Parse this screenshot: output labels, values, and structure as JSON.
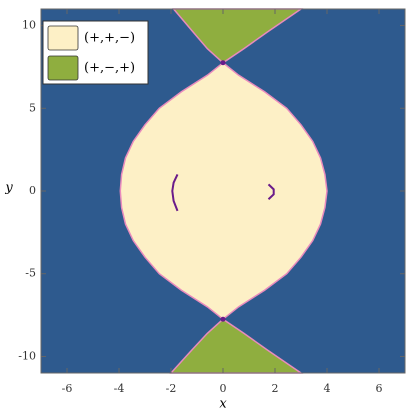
{
  "chart_data": {
    "type": "region",
    "x_label": "x",
    "y_label": "y",
    "xlim": [
      -7,
      7
    ],
    "ylim": [
      -11,
      11
    ],
    "xticks": [
      -6,
      -4,
      -2,
      0,
      2,
      4,
      6
    ],
    "yticks": [
      -10,
      -5,
      0,
      5,
      10
    ],
    "background": "#2e5a8e",
    "boundary_color": "#e98bbd",
    "regions": [
      {
        "name": "(+,+,−)",
        "color": "#fdf0c6",
        "pieces": [
          {
            "x": [
              0,
              0.6,
              1.6,
              2.45,
              3.0,
              3.45,
              3.75,
              3.92,
              4.0,
              3.92,
              3.75,
              3.45,
              3.0,
              2.45,
              1.6,
              0.6,
              0,
              -0.6,
              -1.6,
              -2.45,
              -3.0,
              -3.45,
              -3.75,
              -3.9,
              -3.95,
              -3.9,
              -3.75,
              -3.45,
              -3.0,
              -2.45,
              -1.6,
              -0.6
            ],
            "y": [
              7.75,
              7,
              6,
              5,
              4,
              3,
              2,
              1,
              0,
              -1,
              -2,
              -3,
              -4,
              -5,
              -6,
              -7,
              -7.75,
              -7,
              -6,
              -5,
              -4,
              -3,
              -2,
              -1,
              0,
              1,
              2,
              3,
              4,
              5,
              6,
              7
            ]
          }
        ]
      },
      {
        "name": "(+,−,+)",
        "color": "#8fae3f",
        "pieces": [
          {
            "x": [
              0,
              -0.6,
              -1.2,
              -1.9,
              3,
              1.7,
              0.8
            ],
            "y": [
              7.75,
              8.6,
              9.7,
              11,
              11,
              9.6,
              8.6
            ]
          },
          {
            "x": [
              0,
              -0.6,
              -1.25,
              -2,
              3,
              1.7,
              0.8
            ],
            "y": [
              -7.75,
              -8.6,
              -9.7,
              -11,
              -11,
              -9.6,
              -8.6
            ]
          }
        ]
      }
    ],
    "curves": [
      {
        "color": "#6a1b8a",
        "x": [
          -1.75,
          -1.9,
          -1.95,
          -1.9,
          -1.75
        ],
        "y": [
          1.0,
          0.5,
          0,
          -0.6,
          -1.2
        ]
      },
      {
        "color": "#6a1b8a",
        "x": [
          1.75,
          1.95,
          1.95,
          1.75
        ],
        "y": [
          0.4,
          0.1,
          -0.2,
          -0.5
        ]
      }
    ],
    "points": {
      "color": "#6a1b8a",
      "x": [
        0,
        0
      ],
      "y": [
        7.75,
        -7.75
      ]
    }
  }
}
